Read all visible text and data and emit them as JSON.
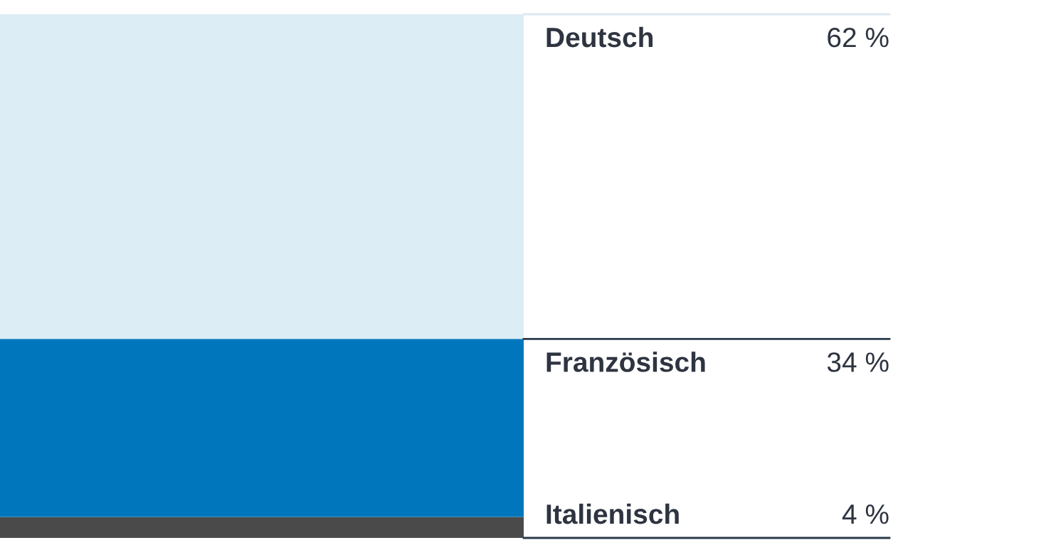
{
  "chart_data": {
    "type": "bar",
    "stacked": true,
    "categories": [
      null
    ],
    "ylim": [
      0,
      100
    ],
    "series": [
      {
        "name": "Italienisch",
        "color": "#4a4a4a",
        "values": [
          4
        ],
        "value_labels": [
          "4 %"
        ]
      },
      {
        "name": "Französisch",
        "color": "#0077bd",
        "values": [
          34
        ],
        "value_labels": [
          "34 %"
        ]
      },
      {
        "name": "Deutsch",
        "color": "#ddedf6",
        "values": [
          62
        ],
        "value_labels": [
          "62 %"
        ]
      }
    ]
  }
}
